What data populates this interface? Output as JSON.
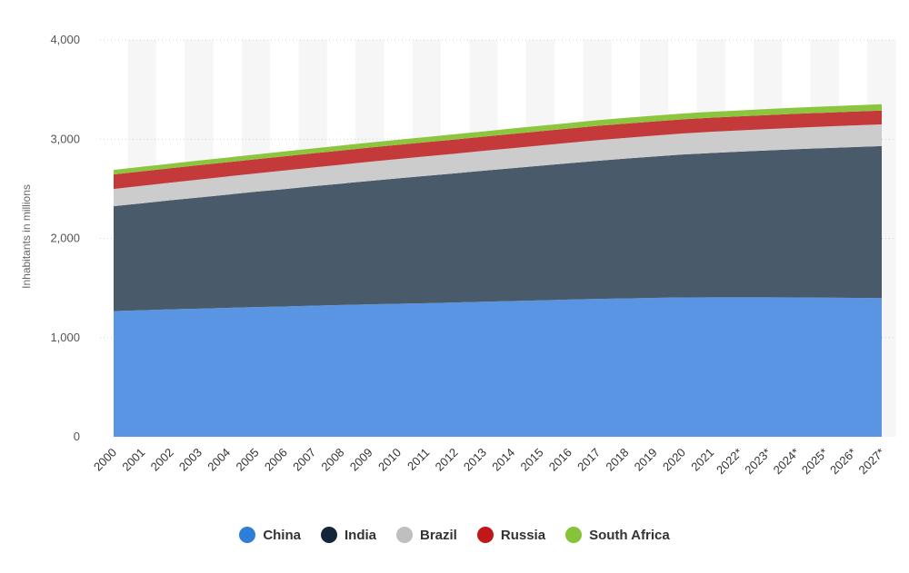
{
  "chart_data": {
    "type": "area",
    "stacked": true,
    "title": "",
    "xlabel": "",
    "ylabel": "Inhabitants in millions",
    "ylim": [
      0,
      4000
    ],
    "yticks": [
      0,
      1000,
      2000,
      3000,
      4000
    ],
    "ytick_labels": [
      "0",
      "1,000",
      "2,000",
      "3,000",
      "4,000"
    ],
    "categories": [
      "2000",
      "2001",
      "2002",
      "2003",
      "2004",
      "2005",
      "2006",
      "2007",
      "2008",
      "2009",
      "2010",
      "2011",
      "2012",
      "2013",
      "2014",
      "2015",
      "2016",
      "2017",
      "2018",
      "2019",
      "2020",
      "2021",
      "2022*",
      "2023*",
      "2024*",
      "2025*",
      "2026*",
      "2027*"
    ],
    "series": [
      {
        "name": "China",
        "color": "#5a95e3",
        "values": [
          1267,
          1276,
          1285,
          1292,
          1300,
          1308,
          1314,
          1321,
          1328,
          1335,
          1341,
          1347,
          1354,
          1361,
          1368,
          1375,
          1383,
          1390,
          1395,
          1400,
          1405,
          1406,
          1406,
          1406,
          1405,
          1403,
          1401,
          1398
        ]
      },
      {
        "name": "India",
        "color": "#495a6a",
        "values": [
          1057,
          1078,
          1099,
          1120,
          1141,
          1162,
          1183,
          1204,
          1224,
          1244,
          1264,
          1283,
          1302,
          1321,
          1339,
          1357,
          1374,
          1392,
          1409,
          1425,
          1440,
          1455,
          1468,
          1481,
          1494,
          1507,
          1519,
          1532
        ]
      },
      {
        "name": "Brazil",
        "color": "#cccccc",
        "values": [
          174,
          176,
          178,
          181,
          183,
          185,
          187,
          189,
          191,
          193,
          195,
          197,
          198,
          200,
          202,
          204,
          206,
          208,
          209,
          211,
          212,
          213,
          214,
          215,
          216,
          217,
          218,
          219
        ]
      },
      {
        "name": "Russia",
        "color": "#c43a3a",
        "values": [
          147,
          146,
          145,
          145,
          144,
          143,
          143,
          143,
          143,
          143,
          143,
          143,
          143,
          143,
          144,
          144,
          144,
          144,
          144,
          143,
          143,
          142,
          142,
          141,
          141,
          140,
          140,
          139
        ]
      },
      {
        "name": "South Africa",
        "color": "#8cc63e",
        "values": [
          45,
          46,
          46,
          47,
          47,
          48,
          49,
          49,
          50,
          51,
          51,
          52,
          53,
          53,
          54,
          55,
          56,
          57,
          58,
          58,
          59,
          60,
          60,
          61,
          62,
          62,
          63,
          64
        ]
      }
    ]
  },
  "legend": {
    "items": [
      {
        "label": "China",
        "color": "#2f7ed8"
      },
      {
        "label": "India",
        "color": "#14263a"
      },
      {
        "label": "Brazil",
        "color": "#bfbfbf"
      },
      {
        "label": "Russia",
        "color": "#c01818"
      },
      {
        "label": "South Africa",
        "color": "#86c23a"
      }
    ]
  }
}
